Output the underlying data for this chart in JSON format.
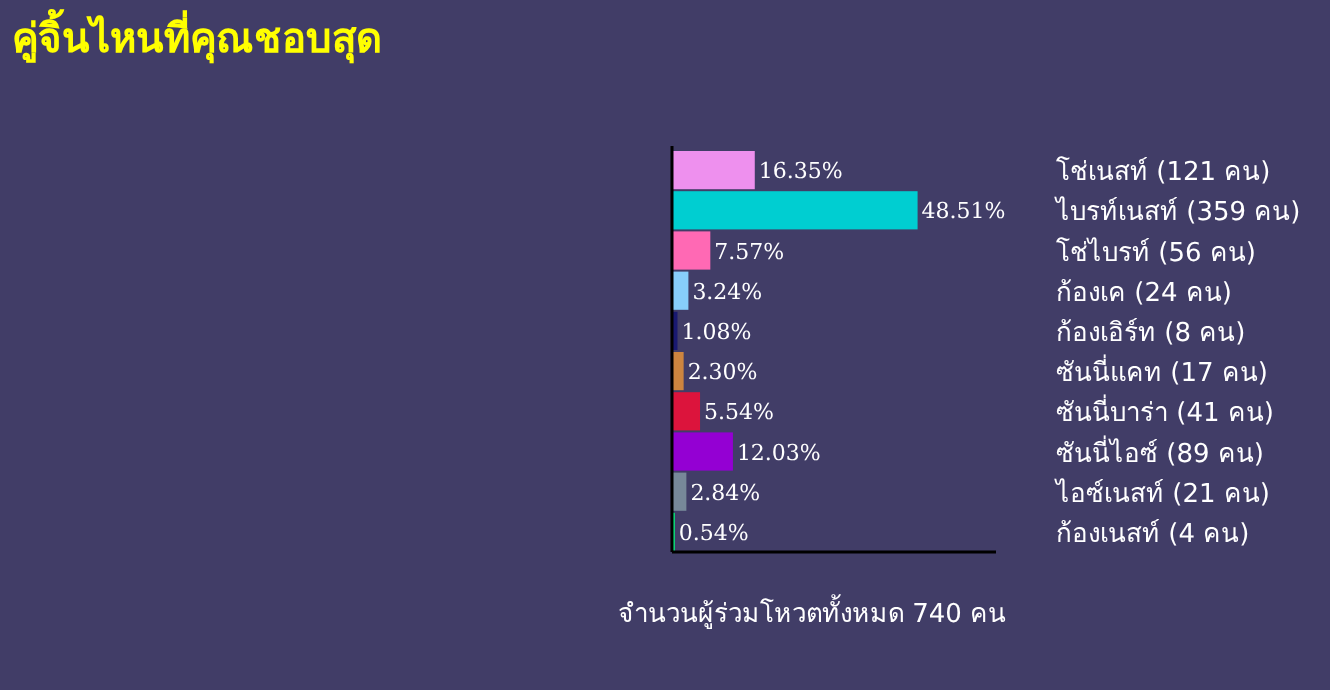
{
  "chart_data": {
    "type": "bar",
    "orientation": "horizontal",
    "title": "คู่จิ้นไหนที่คุณชอบสุด",
    "categories": [
      "โช่เนสท์ (121 คน)",
      "ไบรท์เนสท์ (359 คน)",
      "โช่ไบรท์ (56 คน)",
      "ก้องเค (24 คน)",
      "ก้องเอิร์ท (8 คน)",
      "ซันนี่แคท (17 คน)",
      "ซันนี่บาร่า (41 คน)",
      "ซันนี่ไอซ์ (89 คน)",
      "ไอซ์เนสท์ (21 คน)",
      "ก้องเนสท์ (4 คน)"
    ],
    "values": [
      16.35,
      48.51,
      7.57,
      3.24,
      1.08,
      2.3,
      5.54,
      12.03,
      2.84,
      0.54
    ],
    "colors": [
      "#ee90ee",
      "#00ced1",
      "#ff69b4",
      "#87cefa",
      "#191970",
      "#cd853f",
      "#dc143c",
      "#9400d3",
      "#778899",
      "#00ff7f"
    ],
    "value_labels": [
      "16.35%",
      "48.51%",
      "7.57%",
      "3.24%",
      "1.08%",
      "2.30%",
      "5.54%",
      "12.03%",
      "2.84%",
      "0.54%"
    ],
    "xlim": [
      0,
      64
    ],
    "tick_labels": "y",
    "annotations": [
      "จำนวนผู้ร่วมโหวตทั้งหมด 740 คน"
    ]
  }
}
